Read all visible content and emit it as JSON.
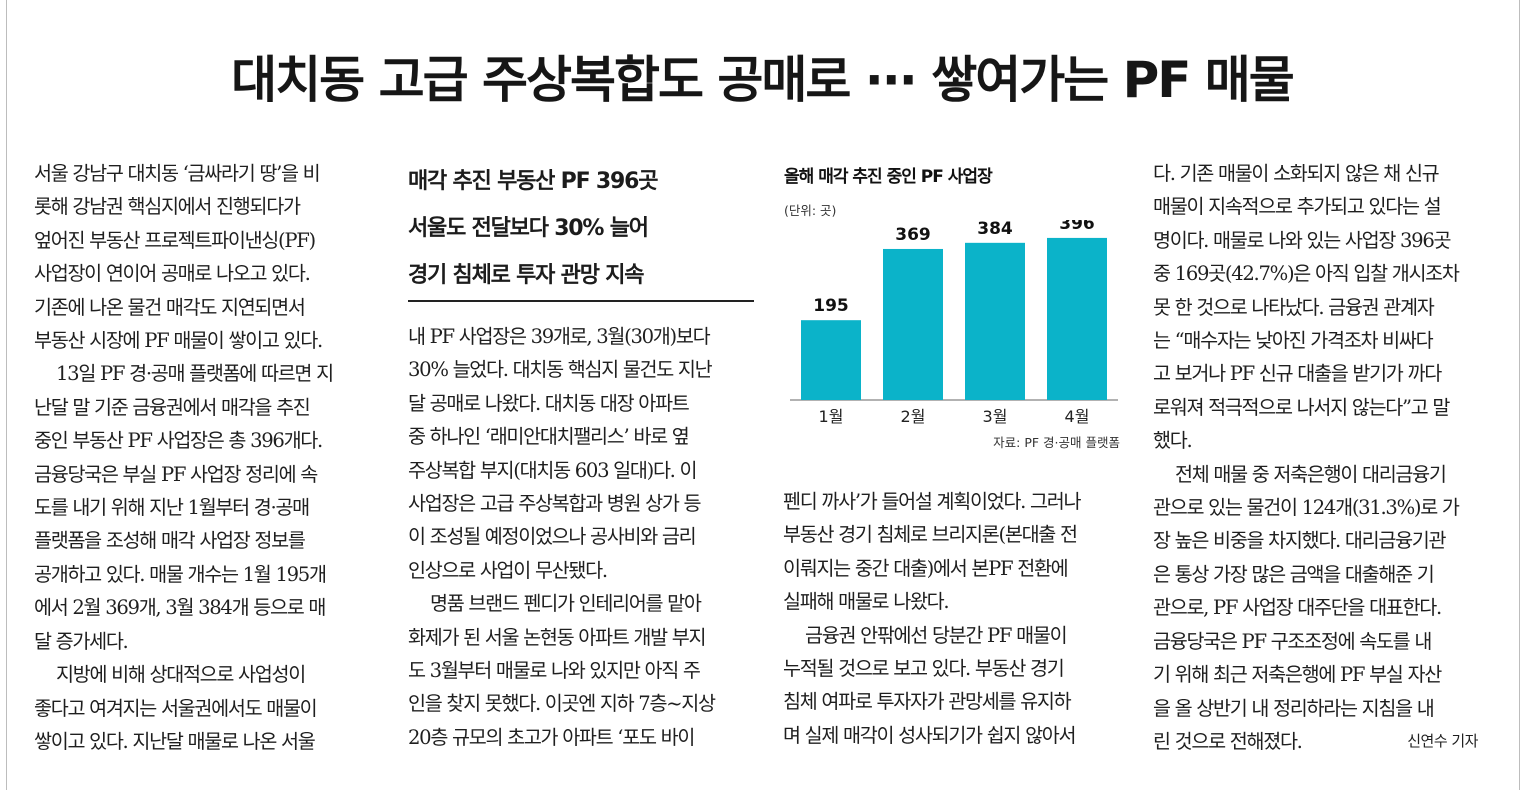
{
  "headline": "대치동 고급 주상복합도 공매로 ··· 쌓여가는 PF 매물",
  "subheads": [
    "매각 추진 부동산 PF 396곳",
    "서울도 전달보다 30% 늘어",
    "경기 침체로 투자 관망 지속"
  ],
  "columns": {
    "col1": [
      "서울 강남구 대치동 ‘금싸라기 땅’을 비",
      "롯해 강남권 핵심지에서 진행되다가",
      "엎어진 부동산 프로젝트파이낸싱(PF)",
      "사업장이 연이어 공매로 나오고 있다.",
      "기존에 나온 물건 매각도 지연되면서",
      "부동산 시장에 PF 매물이 쌓이고 있다.",
      "13일 PF 경·공매 플랫폼에 따르면 지",
      "난달 말 기준 금융권에서 매각을 추진",
      "중인 부동산 PF 사업장은 총 396개다.",
      "금융당국은 부실 PF 사업장 정리에 속",
      "도를 내기 위해 지난 1월부터 경·공매",
      "플랫폼을 조성해 매각 사업장 정보를",
      "공개하고 있다. 매물 개수는 1월 195개",
      "에서 2월 369개, 3월 384개 등으로 매",
      "달 증가세다.",
      "지방에 비해 상대적으로 사업성이",
      "좋다고 여겨지는 서울권에서도 매물이",
      "쌓이고 있다. 지난달 매물로 나온 서울"
    ],
    "col2": [
      "내 PF 사업장은 39개로, 3월(30개)보다",
      "30% 늘었다. 대치동 핵심지 물건도 지난",
      "달 공매로 나왔다. 대치동 대장 아파트",
      "중 하나인 ‘래미안대치팰리스’ 바로 옆",
      "주상복합 부지(대치동 603 일대)다. 이",
      "사업장은 고급 주상복합과 병원 상가 등",
      "이 조성될 예정이었으나 공사비와 금리",
      "인상으로 사업이 무산됐다.",
      "명품 브랜드 펜디가 인테리어를 맡아",
      "화제가 된 서울 논현동 아파트 개발 부지",
      "도 3월부터 매물로 나와 있지만 아직 주",
      "인을 찾지 못했다. 이곳엔 지하 7층~지상",
      "20층 규모의 초고가 아파트 ‘포도 바이"
    ],
    "col3": [
      "펜디 까사’가 들어설 계획이었다. 그러나",
      "부동산 경기 침체로 브리지론(본대출 전",
      "이뤄지는 중간 대출)에서 본PF 전환에",
      "실패해 매물로 나왔다.",
      "금융권 안팎에선 당분간 PF 매물이",
      "누적될 것으로 보고 있다. 부동산 경기",
      "침체 여파로 투자자가 관망세를 유지하",
      "며 실제 매각이 성사되기가 쉽지 않아서"
    ],
    "col4": [
      "다. 기존 매물이 소화되지 않은 채 신규",
      "매물이 지속적으로 추가되고 있다는 설",
      "명이다. 매물로 나와 있는 사업장 396곳",
      "중 169곳(42.7%)은 아직 입찰 개시조차",
      "못 한 것으로 나타났다. 금융권 관계자",
      "는 “매수자는 낮아진 가격조차 비싸다",
      "고 보거나 PF 신규 대출을 받기가 까다",
      "로워져 적극적으로 나서지 않는다”고 말",
      "했다.",
      "전체 매물 중 저축은행이 대리금융기",
      "관으로 있는 물건이 124개(31.3%)로 가",
      "장 높은 비중을 차지했다. 대리금융기관",
      "은 통상 가장 많은 금액을 대출해준 기",
      "관으로, PF 사업장 대주단을 대표한다.",
      "금융당국은 PF 구조조정에 속도를 내",
      "기 위해 최근 저축은행에 PF 부실 자산",
      "을 올 상반기 내 정리하라는 지침을 내",
      "린 것으로 전해졌다."
    ]
  },
  "byline": "신연수 기자",
  "chart_data": {
    "type": "bar",
    "title": "올해 매각 추진 중인 PF 사업장",
    "unit": "(단위: 곳)",
    "categories": [
      "1월",
      "2월",
      "3월",
      "4월"
    ],
    "values": [
      195,
      369,
      384,
      396
    ],
    "ylim": [
      0,
      430
    ],
    "source": "자료: PF 경·공매 플랫폼",
    "bar_color": "#0bb3c9"
  }
}
